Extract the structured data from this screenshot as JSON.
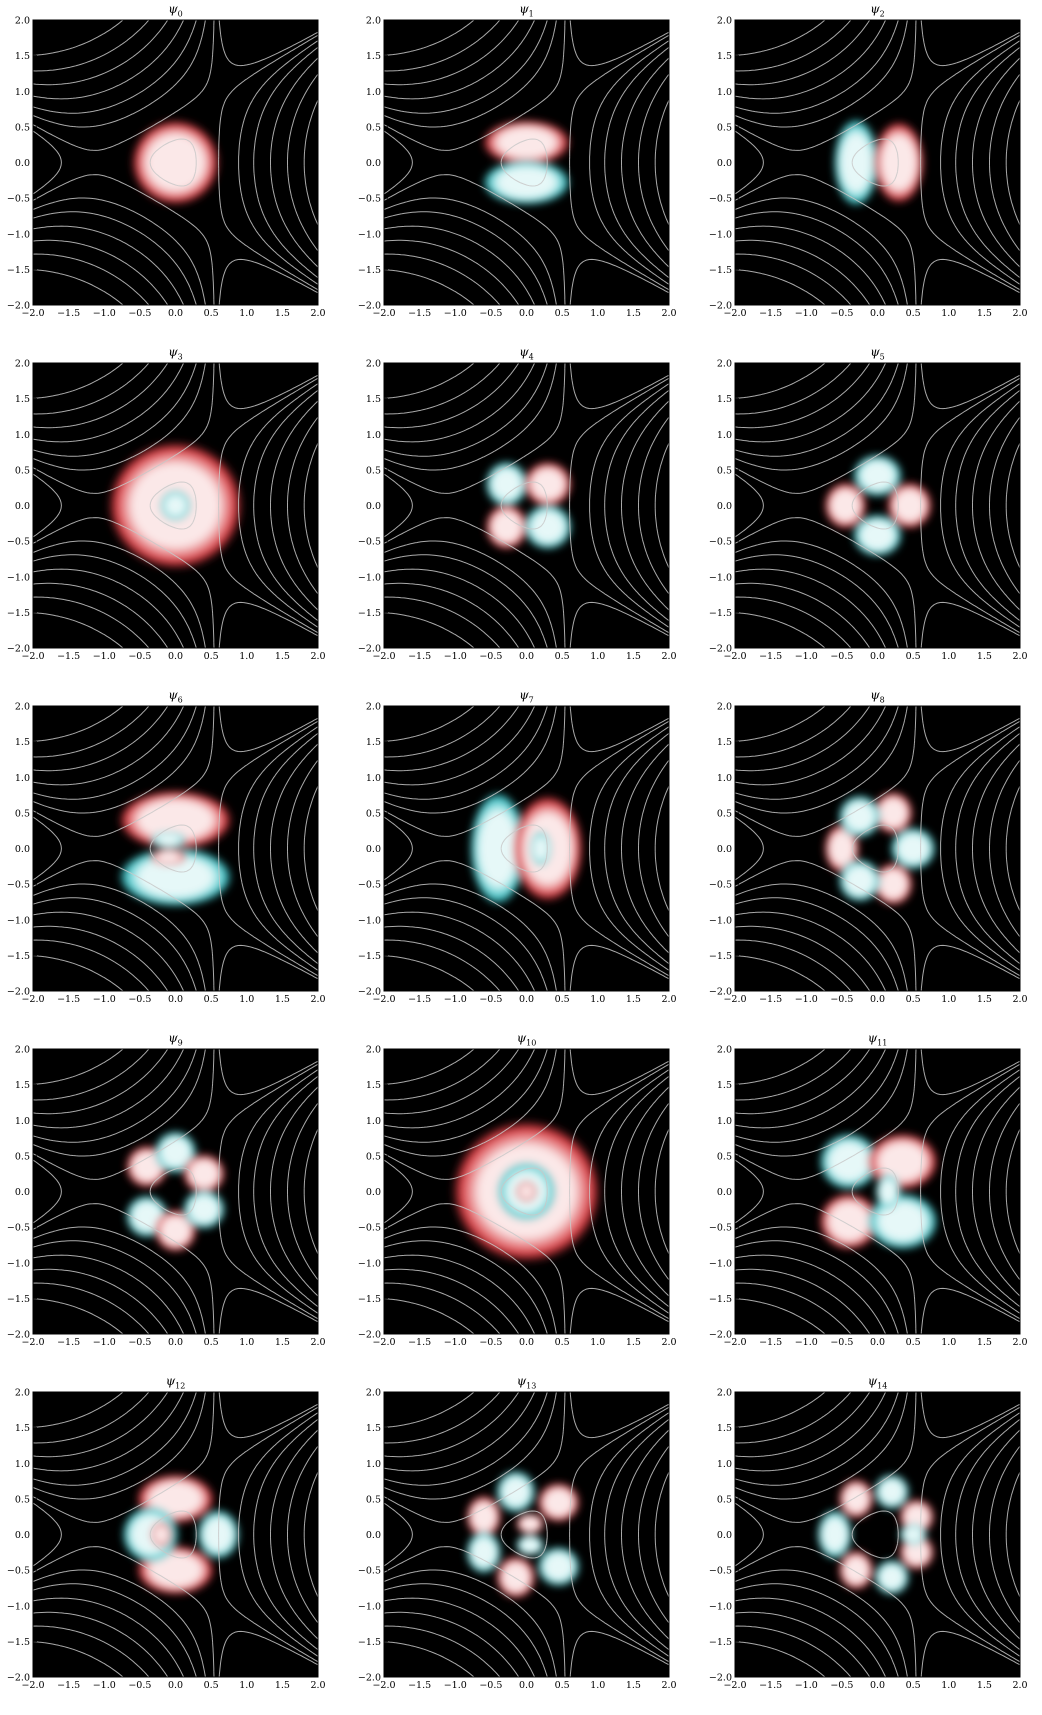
{
  "figure": {
    "background": "#000000",
    "colors": {
      "positive": "#d8393f",
      "positive_light": "#fbe8e8",
      "negative": "#39c4c8",
      "negative_light": "#e6f8f8",
      "contour": "#c8c8c8"
    },
    "axis_ticks": [
      "−2.0",
      "−1.5",
      "−1.0",
      "−0.5",
      "0.0",
      "0.5",
      "1.0",
      "1.5",
      "2.0"
    ],
    "panel_titles": [
      {
        "symbol": "ψ",
        "index": "0"
      },
      {
        "symbol": "ψ",
        "index": "1"
      },
      {
        "symbol": "ψ",
        "index": "2"
      },
      {
        "symbol": "ψ",
        "index": "3"
      },
      {
        "symbol": "ψ",
        "index": "4"
      },
      {
        "symbol": "ψ",
        "index": "5"
      },
      {
        "symbol": "ψ",
        "index": "6"
      },
      {
        "symbol": "ψ",
        "index": "7"
      },
      {
        "symbol": "ψ",
        "index": "8"
      },
      {
        "symbol": "ψ",
        "index": "9"
      },
      {
        "symbol": "ψ",
        "index": "10"
      },
      {
        "symbol": "ψ",
        "index": "11"
      },
      {
        "symbol": "ψ",
        "index": "12"
      },
      {
        "symbol": "ψ",
        "index": "13"
      },
      {
        "symbol": "ψ",
        "index": "14"
      }
    ]
  },
  "chart_data": {
    "type": "heatmap",
    "grid": "3 columns x 5 rows",
    "xlim": [
      -2.0,
      2.0
    ],
    "ylim": [
      -2.0,
      2.0
    ],
    "xticks": [
      -2.0,
      -1.5,
      -1.0,
      -0.5,
      0.0,
      0.5,
      1.0,
      1.5,
      2.0
    ],
    "yticks": [
      -2.0,
      -1.5,
      -1.0,
      -0.5,
      0.0,
      0.5,
      1.0,
      1.5,
      2.0
    ],
    "overlay": "potential contour lines (gray)",
    "colormap": "red = positive amplitude, cyan = negative amplitude, black = zero",
    "panels": [
      {
        "title": "ψ_0",
        "nodal_pattern": "none"
      },
      {
        "title": "ψ_1",
        "nodal_pattern": "horizontal nodal line"
      },
      {
        "title": "ψ_2",
        "nodal_pattern": "vertical nodal line"
      },
      {
        "title": "ψ_3",
        "nodal_pattern": "one radial node"
      },
      {
        "title": "ψ_4",
        "nodal_pattern": "two crossing nodal lines"
      },
      {
        "title": "ψ_5",
        "nodal_pattern": "two crossing nodal lines (X)"
      },
      {
        "title": "ψ_6",
        "nodal_pattern": "horizontal line + radial node"
      },
      {
        "title": "ψ_7",
        "nodal_pattern": "vertical line + radial node"
      },
      {
        "title": "ψ_8",
        "nodal_pattern": "six lobes"
      },
      {
        "title": "ψ_9",
        "nodal_pattern": "three crossing nodal lines"
      },
      {
        "title": "ψ_10",
        "nodal_pattern": "two radial nodes"
      },
      {
        "title": "ψ_11",
        "nodal_pattern": "mixed lobes + radial node"
      },
      {
        "title": "ψ_12",
        "nodal_pattern": "mixed lobes + radial node"
      },
      {
        "title": "ψ_13",
        "nodal_pattern": "eight lobes"
      },
      {
        "title": "ψ_14",
        "nodal_pattern": "eight lobes"
      }
    ]
  }
}
